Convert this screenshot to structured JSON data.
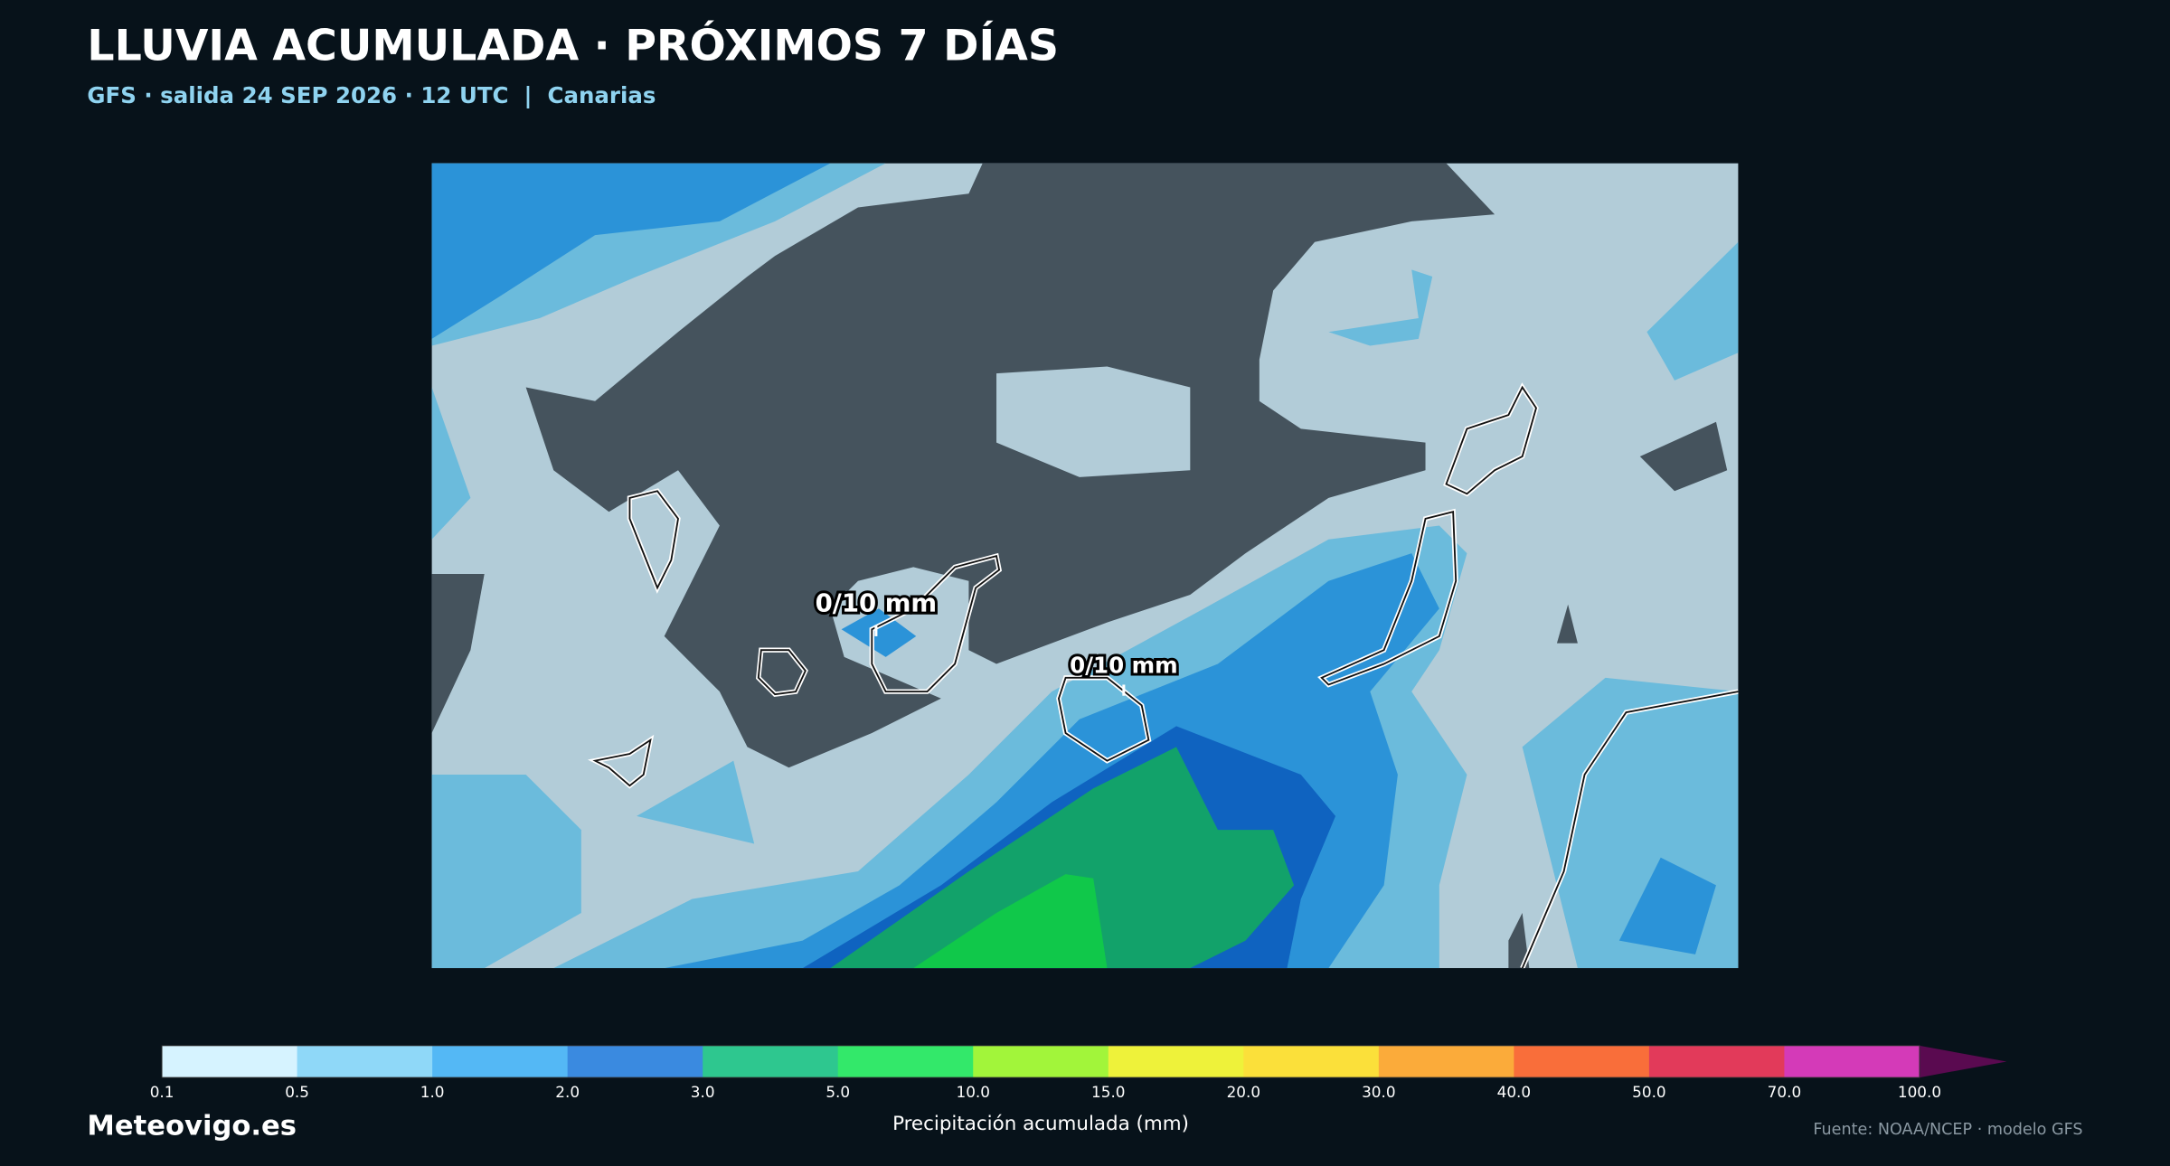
{
  "header": {
    "title": "LLUVIA ACUMULADA · PRÓXIMOS 7 DÍAS",
    "subtitle": "GFS · salida 24 SEP 2026 · 12 UTC  |  Canarias"
  },
  "map": {
    "labels": [
      "0/10 mm",
      "0/10 mm"
    ]
  },
  "colorbar": {
    "ticks": [
      "0.1",
      "0.5",
      "1.0",
      "2.0",
      "3.0",
      "5.0",
      "10.0",
      "15.0",
      "20.0",
      "30.0",
      "40.0",
      "50.0",
      "70.0",
      "100.0"
    ],
    "colors": [
      "#d6f3ff",
      "#8fd8f8",
      "#54b8f5",
      "#3a8ae0",
      "#2ec78f",
      "#33e86a",
      "#a2f53a",
      "#eef23a",
      "#fbe03a",
      "#fbab3a",
      "#f96e3a",
      "#e23a5a",
      "#d43ab8"
    ],
    "extend_color": "#5a0a50",
    "label": "Precipitación acumulada (mm)"
  },
  "footer": {
    "brand": "Meteovigo.es",
    "source": "Fuente: NOAA/NCEP · modelo GFS"
  }
}
